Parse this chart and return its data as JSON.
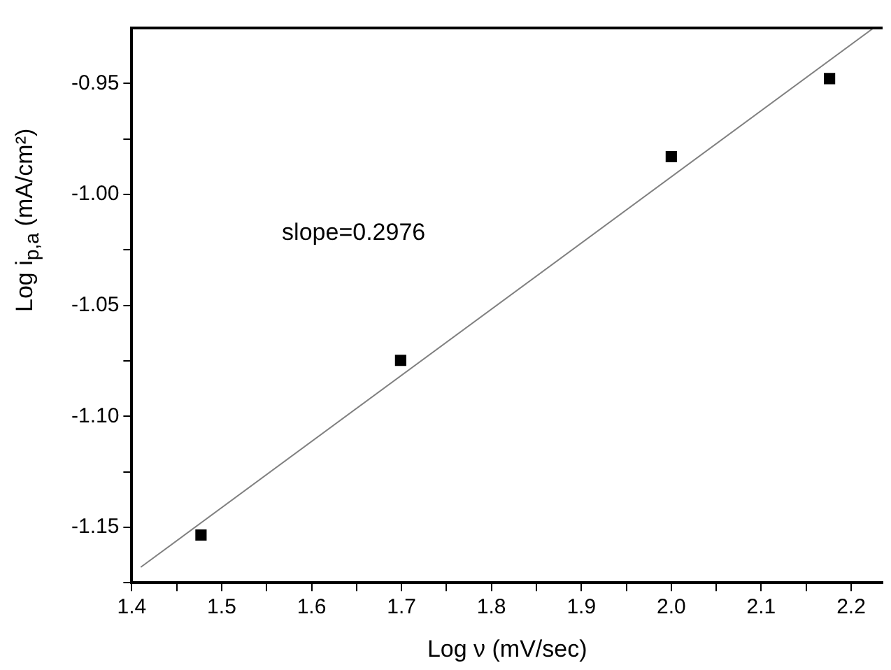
{
  "chart_data": {
    "type": "scatter",
    "xlabel": "Log ν (mV/sec)",
    "ylabel": "Log i$_{p,a}$ (mA/cm²)",
    "annotations": [
      "slope=0.2976"
    ],
    "series": [
      {
        "type": "scatter",
        "color": "#000000",
        "marker": "square",
        "x": [
          1.477,
          1.699,
          2.0,
          2.176
        ],
        "values": [
          -1.1535,
          -1.0748,
          -0.983,
          -0.9478
        ]
      },
      {
        "type": "line",
        "color": "#808080",
        "marker": "none",
        "x": [
          1.41,
          2.225
        ],
        "values": [
          -1.168,
          -0.925
        ]
      }
    ],
    "xlim": [
      1.4,
      2.235
    ],
    "ylim": [
      -1.175,
      -0.925
    ],
    "xticks": [
      1.4,
      {
        "value": 1.45,
        "label": null
      },
      1.5,
      {
        "value": 1.55,
        "label": null
      },
      1.6,
      {
        "value": 1.65,
        "label": null
      },
      1.7,
      {
        "value": 1.75,
        "label": null
      },
      1.8,
      {
        "value": 1.85,
        "label": null
      },
      1.9,
      {
        "value": 1.95,
        "label": null
      },
      "2.0",
      {
        "value": 2.05,
        "label": null
      },
      2.1,
      {
        "value": 2.15,
        "label": null
      },
      2.2
    ],
    "yticks": [
      {
        "value": -1.175,
        "label": null
      },
      -1.15,
      {
        "value": -1.125,
        "label": null
      },
      "-1.10",
      {
        "value": -1.075,
        "label": null
      },
      -1.05,
      {
        "value": -1.025,
        "label": null
      },
      "-1.00",
      {
        "value": -0.975,
        "label": null
      },
      -0.95
    ],
    "grid": false,
    "legend": false
  }
}
